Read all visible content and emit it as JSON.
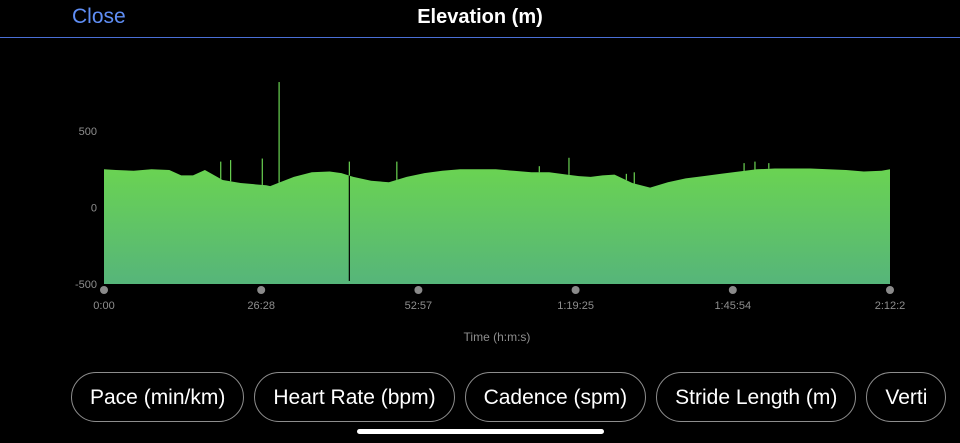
{
  "header": {
    "close_label": "Close",
    "title": "Elevation (m)"
  },
  "chart_data": {
    "type": "area",
    "title": "",
    "xlabel": "Time (h:m:s)",
    "ylabel": "",
    "x_ticks": [
      "0:00",
      "26:28",
      "52:57",
      "1:19:25",
      "1:45:54",
      "2:12:2"
    ],
    "y_ticks": [
      "500",
      "0",
      "-500"
    ],
    "ylim": [
      -500,
      500
    ],
    "xlim_seconds": [
      0,
      7945
    ],
    "series": [
      {
        "x_seconds": [
          0,
          120,
          300,
          480,
          660,
          780,
          900,
          1020,
          1200,
          1380,
          1560,
          1640,
          1680,
          1760,
          1920,
          2100,
          2280,
          2400,
          2520,
          2700,
          2880,
          3060,
          3240,
          3420,
          3600,
          3780,
          3960,
          4140,
          4320,
          4500,
          4680,
          4800,
          4920,
          5040,
          5160,
          5340,
          5520,
          5700,
          5880,
          6060,
          6240,
          6420,
          6600,
          6780,
          6960,
          7140,
          7320,
          7500,
          7680,
          7860,
          7945
        ],
        "y": [
          250,
          245,
          240,
          250,
          245,
          210,
          210,
          245,
          180,
          160,
          150,
          145,
          140,
          160,
          200,
          230,
          235,
          225,
          200,
          175,
          165,
          200,
          225,
          240,
          250,
          250,
          250,
          240,
          230,
          230,
          215,
          205,
          200,
          210,
          215,
          160,
          130,
          165,
          190,
          205,
          220,
          235,
          250,
          255,
          255,
          255,
          250,
          245,
          235,
          240,
          250
        ]
      }
    ],
    "spikes": [
      {
        "x_seconds": 1180,
        "y": 300
      },
      {
        "x_seconds": 1280,
        "y": 310
      },
      {
        "x_seconds": 1600,
        "y": 320
      },
      {
        "x_seconds": 1770,
        "y": 820
      },
      {
        "x_seconds": 2480,
        "y": 300
      },
      {
        "x_seconds": 2960,
        "y": 300
      },
      {
        "x_seconds": 2480,
        "y": -480
      },
      {
        "x_seconds": 4400,
        "y": 270
      },
      {
        "x_seconds": 4700,
        "y": 325
      },
      {
        "x_seconds": 5280,
        "y": 220
      },
      {
        "x_seconds": 5360,
        "y": 230
      },
      {
        "x_seconds": 6470,
        "y": 290
      },
      {
        "x_seconds": 6580,
        "y": 300
      },
      {
        "x_seconds": 6720,
        "y": 290
      }
    ],
    "grid": false,
    "fill_top": "#6ad352",
    "fill_bottom": "#56b57a"
  },
  "metrics": [
    "Pace (min/km)",
    "Heart Rate (bpm)",
    "Cadence (spm)",
    "Stride Length (m)",
    "Verti"
  ]
}
